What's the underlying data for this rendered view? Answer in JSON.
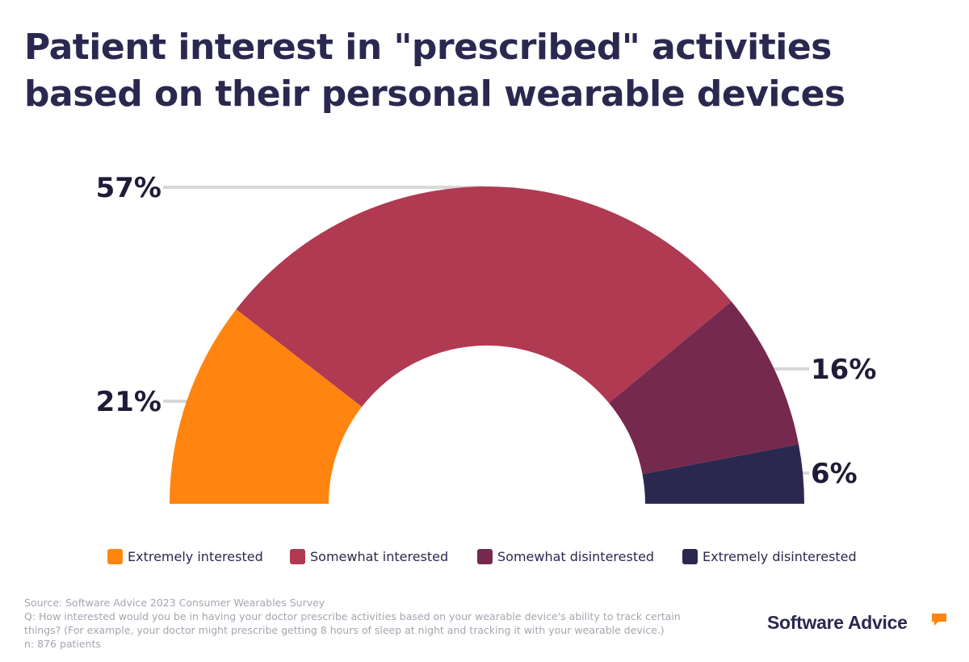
{
  "title": "Patient interest in \"prescribed\" activities based on their personal wearable devices",
  "chart_data": {
    "type": "pie",
    "subtype": "half-donut",
    "title": "Patient interest in \"prescribed\" activities based on their personal wearable devices",
    "categories": [
      "Extremely interested",
      "Somewhat interested",
      "Somewhat disinterested",
      "Extremely disinterested"
    ],
    "values": [
      21,
      57,
      16,
      6
    ],
    "value_labels": [
      "21%",
      "57%",
      "16%",
      "6%"
    ],
    "colors": [
      "#ff8410",
      "#b03a52",
      "#76294e",
      "#2b2850"
    ],
    "legend": "bottom"
  },
  "legend": {
    "items": [
      {
        "label": "Extremely interested",
        "color": "#ff8410"
      },
      {
        "label": "Somewhat interested",
        "color": "#b03a52"
      },
      {
        "label": "Somewhat disinterested",
        "color": "#76294e"
      },
      {
        "label": "Extremely disinterested",
        "color": "#2b2850"
      }
    ]
  },
  "footer": {
    "source": "Source: Software Advice 2023 Consumer Wearables Survey",
    "question": "Q: How interested would you be in having your doctor prescribe activities based on your wearable device's ability to track certain things? (For example, your doctor might prescribe getting 8 hours of sleep at night and tracking it with your wearable device.)",
    "n": "n: 876 patients"
  },
  "brand": {
    "name": "Software Advice",
    "accent_color": "#ff8410"
  }
}
